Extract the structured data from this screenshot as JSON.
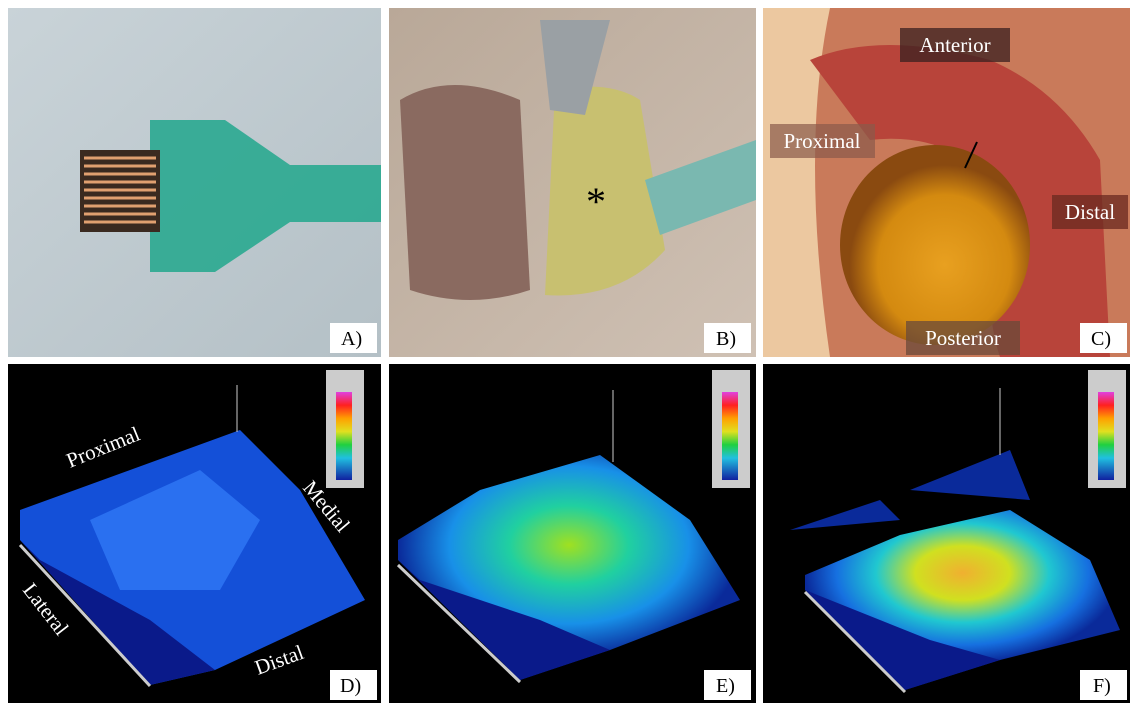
{
  "panels": [
    {
      "label": "A)"
    },
    {
      "label": "B)",
      "annotations": [
        "*"
      ]
    },
    {
      "label": "C)",
      "annotations": [
        "Anterior",
        "Proximal",
        "Distal",
        "Posterior"
      ]
    },
    {
      "label": "D)",
      "annotations": [
        "Proximal",
        "Medial",
        "Lateral",
        "Distal"
      ]
    },
    {
      "label": "E)"
    },
    {
      "label": "F)"
    }
  ]
}
